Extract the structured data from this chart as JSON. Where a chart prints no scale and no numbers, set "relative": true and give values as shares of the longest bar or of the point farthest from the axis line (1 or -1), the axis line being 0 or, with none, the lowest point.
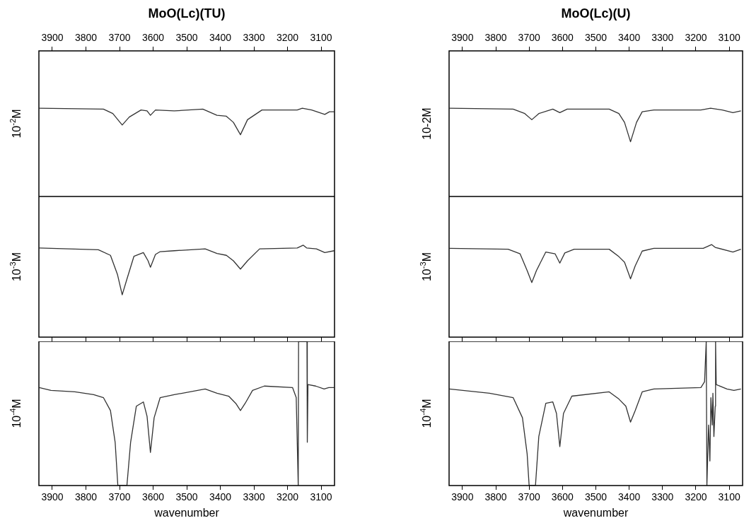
{
  "chart_data": [
    {
      "type": "line",
      "title": "MoO(Lc)(TU)",
      "ylabel": "10$^{-2}$M",
      "relative": true,
      "tick_labels": "x",
      "xlim": [
        3940,
        3060
      ],
      "xticks": [
        3900,
        3800,
        3700,
        3600,
        3500,
        3400,
        3300,
        3200,
        3100
      ],
      "color": "#333333",
      "x": [
        3939,
        3748,
        3720,
        3692,
        3671,
        3636,
        3618,
        3608,
        3593,
        3537,
        3452,
        3410,
        3382,
        3361,
        3340,
        3319,
        3276,
        3171,
        3156,
        3128,
        3089,
        3075,
        3061
      ],
      "values": [
        1.0,
        0.99,
        0.94,
        0.81,
        0.9,
        0.98,
        0.97,
        0.92,
        0.98,
        0.97,
        0.99,
        0.92,
        0.91,
        0.84,
        0.7,
        0.87,
        0.98,
        0.98,
        1.0,
        0.98,
        0.93,
        0.96,
        0.96
      ]
    },
    {
      "type": "line",
      "title": "MoO(Lc)(U)",
      "ylabel": "10-2M",
      "relative": true,
      "tick_labels": "x",
      "xlim": [
        3940,
        3060
      ],
      "xticks": [
        3900,
        3800,
        3700,
        3600,
        3500,
        3400,
        3300,
        3200,
        3100
      ],
      "color": "#333333",
      "x": [
        3939,
        3748,
        3713,
        3692,
        3671,
        3629,
        3608,
        3586,
        3460,
        3431,
        3414,
        3396,
        3378,
        3361,
        3326,
        3185,
        3156,
        3121,
        3089,
        3065
      ],
      "values": [
        1.0,
        0.99,
        0.94,
        0.87,
        0.94,
        0.99,
        0.95,
        0.99,
        0.99,
        0.94,
        0.84,
        0.62,
        0.84,
        0.96,
        0.98,
        0.98,
        1.0,
        0.98,
        0.95,
        0.97
      ]
    },
    {
      "type": "line",
      "ylabel": "10$^{-3}$M",
      "relative": true,
      "tick_labels": false,
      "xlim": [
        3940,
        3060
      ],
      "xticks": [
        3900,
        3800,
        3700,
        3600,
        3500,
        3400,
        3300,
        3200,
        3100
      ],
      "color": "#333333",
      "x": [
        3939,
        3763,
        3727,
        3706,
        3692,
        3678,
        3657,
        3629,
        3615,
        3608,
        3593,
        3579,
        3537,
        3445,
        3410,
        3382,
        3361,
        3340,
        3319,
        3283,
        3171,
        3153,
        3143,
        3114,
        3089,
        3061
      ],
      "values": [
        0.97,
        0.95,
        0.89,
        0.68,
        0.46,
        0.63,
        0.88,
        0.92,
        0.83,
        0.76,
        0.9,
        0.93,
        0.94,
        0.96,
        0.91,
        0.89,
        0.83,
        0.74,
        0.83,
        0.96,
        0.97,
        1.0,
        0.97,
        0.96,
        0.92,
        0.94
      ]
    },
    {
      "type": "line",
      "ylabel": "10$^{-3}$M",
      "relative": true,
      "tick_labels": false,
      "xlim": [
        3940,
        3060
      ],
      "xticks": [
        3900,
        3800,
        3700,
        3600,
        3500,
        3400,
        3300,
        3200,
        3100
      ],
      "color": "#333333",
      "x": [
        3939,
        3763,
        3727,
        3706,
        3692,
        3678,
        3650,
        3622,
        3608,
        3593,
        3565,
        3460,
        3431,
        3414,
        3396,
        3382,
        3361,
        3326,
        3178,
        3153,
        3142,
        3089,
        3065
      ],
      "values": [
        0.96,
        0.95,
        0.9,
        0.72,
        0.59,
        0.72,
        0.92,
        0.9,
        0.8,
        0.91,
        0.95,
        0.95,
        0.87,
        0.81,
        0.63,
        0.77,
        0.93,
        0.96,
        0.96,
        1.0,
        0.97,
        0.92,
        0.95
      ]
    },
    {
      "type": "line",
      "ylabel": "10$^{-4}$M",
      "relative": true,
      "tick_labels": "x",
      "xlim": [
        3940,
        3060
      ],
      "xticks": [
        3900,
        3800,
        3700,
        3600,
        3500,
        3400,
        3300,
        3200,
        3100
      ],
      "xlabel": "wavenumber",
      "color": "#333333",
      "x": [
        3939,
        3904,
        3833,
        3777,
        3748,
        3727,
        3713,
        3705,
        3678,
        3667,
        3650,
        3629,
        3618,
        3608,
        3597,
        3579,
        3537,
        3445,
        3410,
        3375,
        3354,
        3340,
        3326,
        3304,
        3269,
        3185,
        3174,
        3168,
        3167,
        3142,
        3141,
        3139,
        3116,
        3091,
        3077,
        3061
      ],
      "values": [
        0.68,
        0.66,
        0.65,
        0.63,
        0.61,
        0.52,
        0.3,
        0,
        0,
        0.3,
        0.55,
        0.58,
        0.48,
        0.23,
        0.47,
        0.61,
        0.63,
        0.67,
        0.64,
        0.62,
        0.57,
        0.52,
        0.57,
        0.66,
        0.69,
        0.68,
        0.61,
        0,
        1.0,
        1.0,
        0.3,
        0.7,
        0.69,
        0.67,
        0.68,
        0.68
      ]
    },
    {
      "type": "line",
      "ylabel": "10$^{-4}$M",
      "relative": true,
      "tick_labels": "x",
      "xlim": [
        3940,
        3060
      ],
      "xticks": [
        3900,
        3800,
        3700,
        3600,
        3500,
        3400,
        3300,
        3200,
        3100
      ],
      "xlabel": "wavenumber",
      "color": "#333333",
      "x": [
        3939,
        3819,
        3748,
        3720,
        3706,
        3700,
        3681,
        3671,
        3650,
        3629,
        3618,
        3608,
        3597,
        3572,
        3460,
        3431,
        3410,
        3396,
        3382,
        3361,
        3326,
        3185,
        3174,
        3169,
        3167,
        3162,
        3158,
        3155,
        3151,
        3149,
        3146,
        3142,
        3141,
        3139,
        3107,
        3086,
        3065
      ],
      "values": [
        0.67,
        0.64,
        0.61,
        0.47,
        0.22,
        0,
        0,
        0.34,
        0.57,
        0.58,
        0.5,
        0.27,
        0.5,
        0.62,
        0.65,
        0.6,
        0.55,
        0.44,
        0.52,
        0.65,
        0.67,
        0.68,
        0.72,
        1.0,
        0,
        0.42,
        0.17,
        0.61,
        0.42,
        0.64,
        0.34,
        0.55,
        1.0,
        0.7,
        0.67,
        0.66,
        0.67
      ]
    }
  ]
}
